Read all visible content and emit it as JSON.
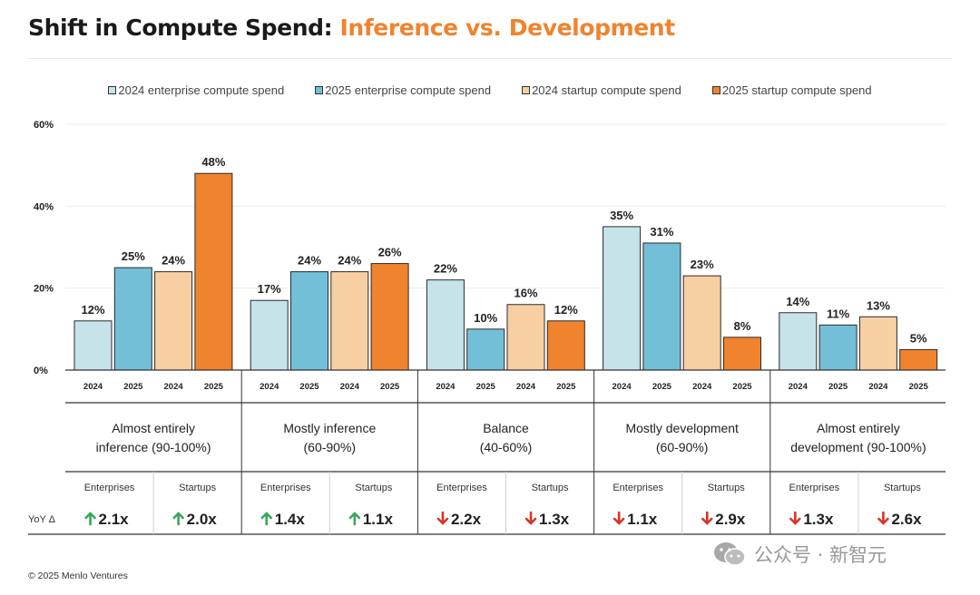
{
  "title": {
    "main": "Shift in Compute Spend: ",
    "accent": "Inference vs. Development"
  },
  "colors": {
    "enterprise_2024": "#c6e3ea",
    "enterprise_2025": "#74bfd8",
    "startup_2024": "#f8cfa2",
    "startup_2025": "#f0832e",
    "up_arrow": "#3aa65a",
    "down_arrow": "#d9332b",
    "title_accent": "#f0832e"
  },
  "chart_data": {
    "type": "bar",
    "title": "Shift in Compute Spend: Inference vs. Development",
    "ylim": [
      0,
      60
    ],
    "yticks": [
      "0%",
      "20%",
      "40%",
      "60%"
    ],
    "grid": true,
    "legend_position": "top-center",
    "categories": [
      "Almost entirely inference (90-100%)",
      "Mostly inference (60-90%)",
      "Balance (40-60%)",
      "Mostly development (60-90%)",
      "Almost entirely development (90-100%)"
    ],
    "series": [
      {
        "name": "2024 enterprise compute spend",
        "year": "2024",
        "values": [
          12,
          17,
          22,
          35,
          14
        ],
        "labels": [
          "12%",
          "17%",
          "22%",
          "35%",
          "14%"
        ]
      },
      {
        "name": "2025 enterprise compute spend",
        "year": "2025",
        "values": [
          25,
          24,
          10,
          31,
          11
        ],
        "labels": [
          "25%",
          "24%",
          "10%",
          "31%",
          "11%"
        ]
      },
      {
        "name": "2024 startup compute spend",
        "year": "2024",
        "values": [
          24,
          24,
          16,
          23,
          13
        ],
        "labels": [
          "24%",
          "24%",
          "16%",
          "23%",
          "13%"
        ]
      },
      {
        "name": "2025 startup compute spend",
        "year": "2025",
        "values": [
          48,
          26,
          12,
          8,
          5
        ],
        "labels": [
          "48%",
          "26%",
          "12%",
          "8%",
          "5%"
        ]
      }
    ],
    "groups": [
      {
        "line1": "Almost entirely",
        "line2": "inference (90-100%)"
      },
      {
        "line1": "Mostly inference",
        "line2": "(60-90%)"
      },
      {
        "line1": "Balance",
        "line2": "(40-60%)"
      },
      {
        "line1": "Mostly development",
        "line2": "(60-90%)"
      },
      {
        "line1": "Almost entirely",
        "line2": "development (90-100%)"
      }
    ],
    "yoy": {
      "row_label": "YoY Δ",
      "col_labels": [
        "Enterprises",
        "Startups"
      ],
      "values": [
        {
          "enterprises": "2.1x",
          "enterprises_dir": "up",
          "startups": "2.0x",
          "startups_dir": "up"
        },
        {
          "enterprises": "1.4x",
          "enterprises_dir": "up",
          "startups": "1.1x",
          "startups_dir": "up"
        },
        {
          "enterprises": "2.2x",
          "enterprises_dir": "down",
          "startups": "1.3x",
          "startups_dir": "down"
        },
        {
          "enterprises": "1.1x",
          "enterprises_dir": "down",
          "startups": "2.9x",
          "startups_dir": "down"
        },
        {
          "enterprises": "1.3x",
          "enterprises_dir": "down",
          "startups": "2.6x",
          "startups_dir": "down"
        }
      ]
    }
  },
  "footer": "© 2025 Menlo Ventures",
  "watermark": {
    "text": "公众号 · 新智元",
    "icon": "wechat-icon"
  }
}
